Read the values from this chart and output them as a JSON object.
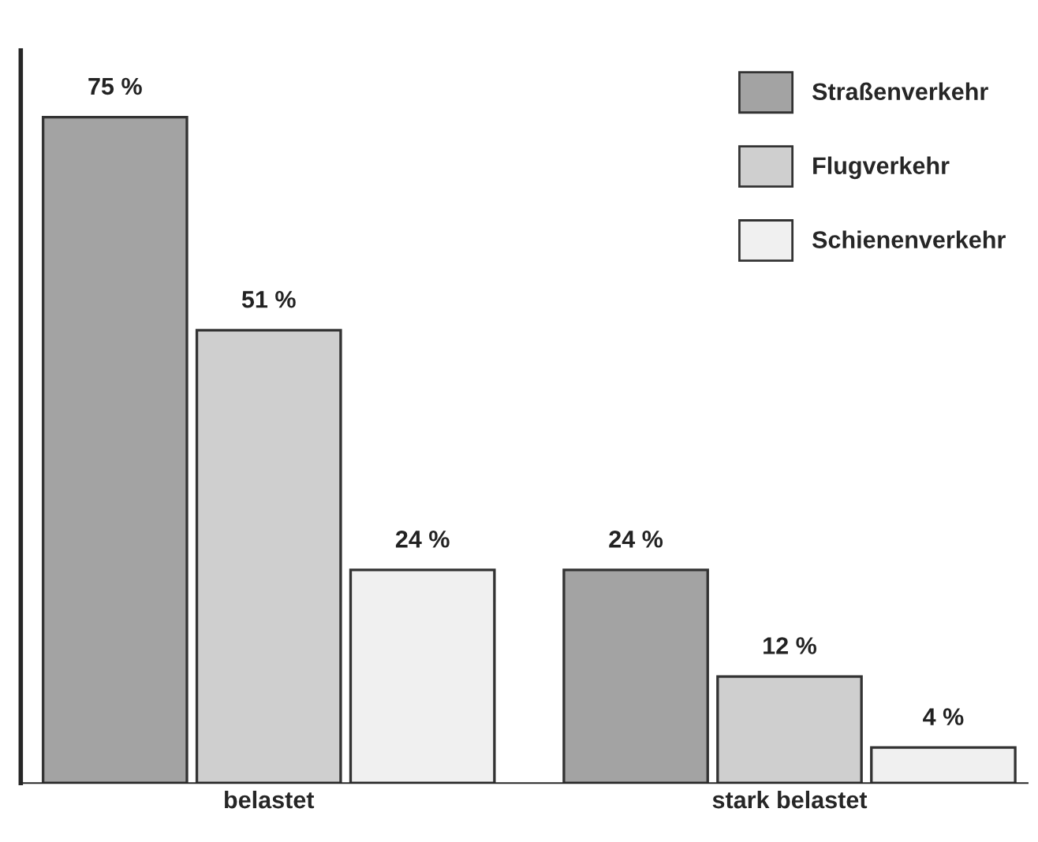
{
  "chart_data": {
    "type": "bar",
    "categories": [
      "belastet",
      "stark belastet"
    ],
    "series": [
      {
        "name": "Straßenverkehr",
        "color": "#a3a3a3",
        "values": [
          75,
          24
        ],
        "value_labels": [
          "75 %",
          "24 %"
        ]
      },
      {
        "name": "Flugverkehr",
        "color": "#cfcfcf",
        "values": [
          51,
          12
        ],
        "value_labels": [
          "51 %",
          "12 %"
        ]
      },
      {
        "name": "Schienenverkehr",
        "color": "#f0f0f0",
        "values": [
          24,
          4
        ],
        "value_labels": [
          "24 %",
          "4 %"
        ]
      }
    ],
    "legend": "top right",
    "grid": false,
    "tick_labels": "x"
  }
}
